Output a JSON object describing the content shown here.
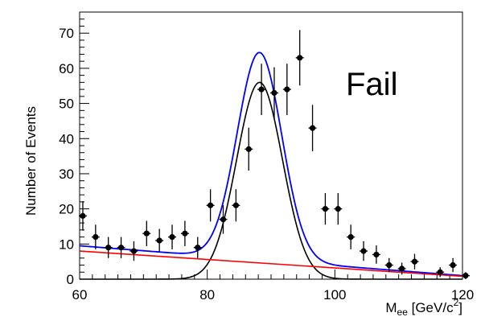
{
  "chart_data": {
    "type": "scatter",
    "annotation": "Fail",
    "xlabel": {
      "main": "M",
      "sub": "ee",
      "unit_pre": " [GeV/c",
      "unit_sup": "2",
      "unit_post": "]"
    },
    "ylabel": "Number of Events",
    "xlim": [
      60,
      120
    ],
    "ylim": [
      0,
      76
    ],
    "x_ticks": [
      60,
      80,
      100,
      120
    ],
    "y_ticks": [
      0,
      10,
      20,
      30,
      40,
      50,
      60,
      70
    ],
    "grid": false,
    "colors": {
      "data": "#000000",
      "total_fit": "#0000ff",
      "signal": "#000000",
      "background": "#ff0000"
    },
    "series": [
      {
        "kind": "data_points",
        "points": [
          [
            60.5,
            18,
            4.2
          ],
          [
            62.5,
            12,
            3.5
          ],
          [
            64.5,
            9,
            3.0
          ],
          [
            66.5,
            9,
            3.0
          ],
          [
            68.5,
            8,
            2.8
          ],
          [
            70.5,
            13,
            3.6
          ],
          [
            72.5,
            11,
            3.3
          ],
          [
            74.5,
            12,
            3.5
          ],
          [
            76.5,
            13,
            3.6
          ],
          [
            78.5,
            9,
            3.0
          ],
          [
            80.5,
            21,
            4.6
          ],
          [
            82.5,
            17,
            4.1
          ],
          [
            84.5,
            21,
            4.6
          ],
          [
            86.5,
            37,
            6.1
          ],
          [
            88.5,
            54,
            7.3
          ],
          [
            90.5,
            53,
            7.3
          ],
          [
            92.5,
            54,
            7.3
          ],
          [
            94.5,
            63,
            7.9
          ],
          [
            96.5,
            43,
            6.6
          ],
          [
            98.5,
            20,
            4.5
          ],
          [
            100.5,
            20,
            4.5
          ],
          [
            102.5,
            12,
            3.5
          ],
          [
            104.5,
            8,
            2.8
          ],
          [
            106.5,
            7,
            2.6
          ],
          [
            108.5,
            4,
            2.0
          ],
          [
            110.5,
            3,
            1.7
          ],
          [
            112.5,
            5,
            2.2
          ],
          [
            116.5,
            2,
            1.4
          ],
          [
            118.5,
            4,
            2.0
          ],
          [
            120.5,
            1,
            1.0
          ]
        ]
      },
      {
        "kind": "curve",
        "color": "#000000",
        "mean": 88.2,
        "sigma": 3.6,
        "amp": 56
      },
      {
        "kind": "curve",
        "color": "#0000ff",
        "mean": 88.2,
        "sigma": 3.5,
        "amp": 59,
        "bkg_at_60": 9.5,
        "bkg_at_120": 1.0
      },
      {
        "kind": "line",
        "color": "#ff0000",
        "start": [
          60,
          8
        ],
        "end": [
          120,
          0.8
        ]
      }
    ]
  }
}
